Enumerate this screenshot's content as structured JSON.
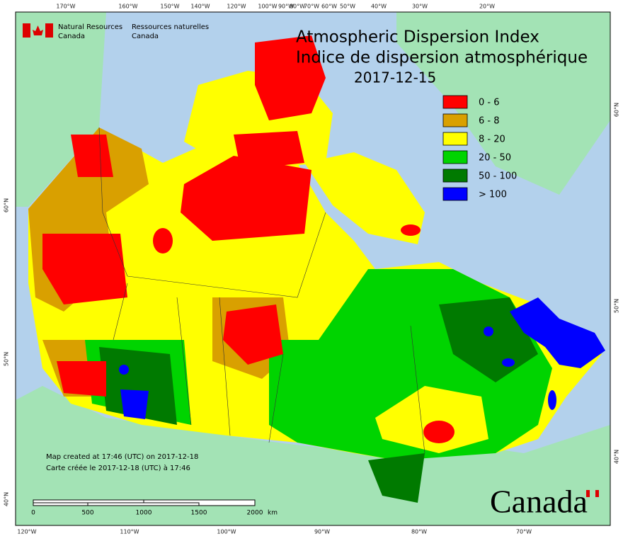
{
  "header": {
    "title_en": "Atmospheric Dispersion Index",
    "title_fr": "Indice de dispersion atmosphérique",
    "date": "2017-12-15"
  },
  "logo": {
    "en_line1": "Natural Resources",
    "en_line2": "Canada",
    "fr_line1": "Ressources naturelles",
    "fr_line2": "Canada"
  },
  "legend": [
    {
      "label": "0 - 6",
      "color": "#ff0000"
    },
    {
      "label": "6 - 8",
      "color": "#d9a000"
    },
    {
      "label": "8 - 20",
      "color": "#ffff00"
    },
    {
      "label": "20 - 50",
      "color": "#00d400"
    },
    {
      "label": "50 - 100",
      "color": "#007a00"
    },
    {
      "label": "> 100",
      "color": "#0000ff"
    }
  ],
  "top_longitudes": [
    "170°W",
    "160°W",
    "150°W",
    "140°W",
    "120°W",
    "100°W",
    "90°W",
    "80°W",
    "70°W",
    "60°W",
    "50°W",
    "40°W",
    "30°W",
    "20°W"
  ],
  "bottom_longitudes": [
    "120°W",
    "110°W",
    "100°W",
    "90°W",
    "80°W",
    "70°W"
  ],
  "left_latitudes": [
    "60°N",
    "50°N",
    "40°N"
  ],
  "right_latitudes": [
    "60°N",
    "50°N",
    "40°N"
  ],
  "notes": [
    "Map created at 17:46 (UTC) on 2017-12-18",
    "Carte créée le 2017-12-18 (UTC) à 17:46"
  ],
  "scale_bar": {
    "labels": [
      "0",
      "500",
      "1000",
      "1500",
      "2000"
    ],
    "unit": "km"
  },
  "wordmark": "Canada"
}
